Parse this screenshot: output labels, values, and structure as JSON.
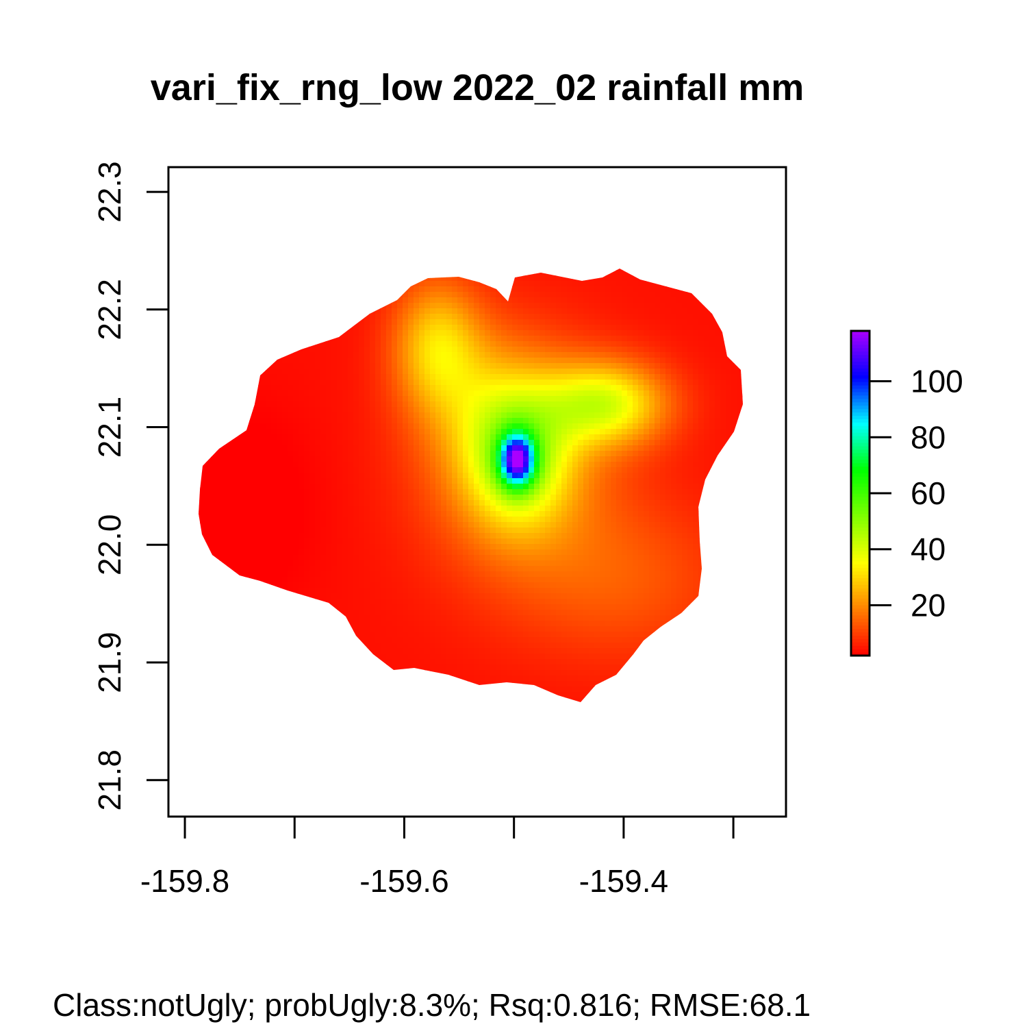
{
  "title": "vari_fix_rng_low 2022_02 rainfall mm",
  "footer": "Class:notUgly;  probUgly:8.3%;  Rsq:0.816;  RMSE:68.1",
  "chart_data": {
    "type": "heatmap",
    "title": "vari_fix_rng_low 2022_02 rainfall mm",
    "xlabel": "",
    "ylabel": "",
    "xlim": [
      -159.815,
      -159.252
    ],
    "ylim": [
      21.769,
      22.321
    ],
    "x_ticks": [
      -159.8,
      -159.7,
      -159.6,
      -159.5,
      -159.4,
      -159.3
    ],
    "x_tick_labels": [
      "-159.8",
      "",
      "-159.6",
      "",
      "-159.4",
      ""
    ],
    "y_ticks": [
      21.8,
      21.9,
      22.0,
      22.1,
      22.2,
      22.3
    ],
    "y_tick_labels": [
      "21.8",
      "21.9",
      "22.0",
      "22.1",
      "22.2",
      "22.3"
    ],
    "grid": false,
    "legend": "right",
    "colorbar": {
      "min": 2,
      "max": 118,
      "ticks": [
        20,
        40,
        60,
        80,
        100
      ],
      "tick_labels": [
        "20",
        "40",
        "60",
        "80",
        "100"
      ],
      "colors": [
        "#ff0000",
        "#ff8000",
        "#ffff00",
        "#80ff00",
        "#00ff00",
        "#00ffff",
        "#0000ff",
        "#aa00ff"
      ]
    },
    "field": {
      "peak": {
        "lon": -159.497,
        "lat": 22.072,
        "value": 115
      },
      "green_lobe_east": {
        "lon": -159.416,
        "lat": 22.12,
        "value": 42
      },
      "green_lobe_north": {
        "lon": -159.57,
        "lat": 22.17,
        "value": 35
      },
      "west_low": {
        "lon": -159.75,
        "lat": 22.03,
        "value": 3
      }
    }
  }
}
